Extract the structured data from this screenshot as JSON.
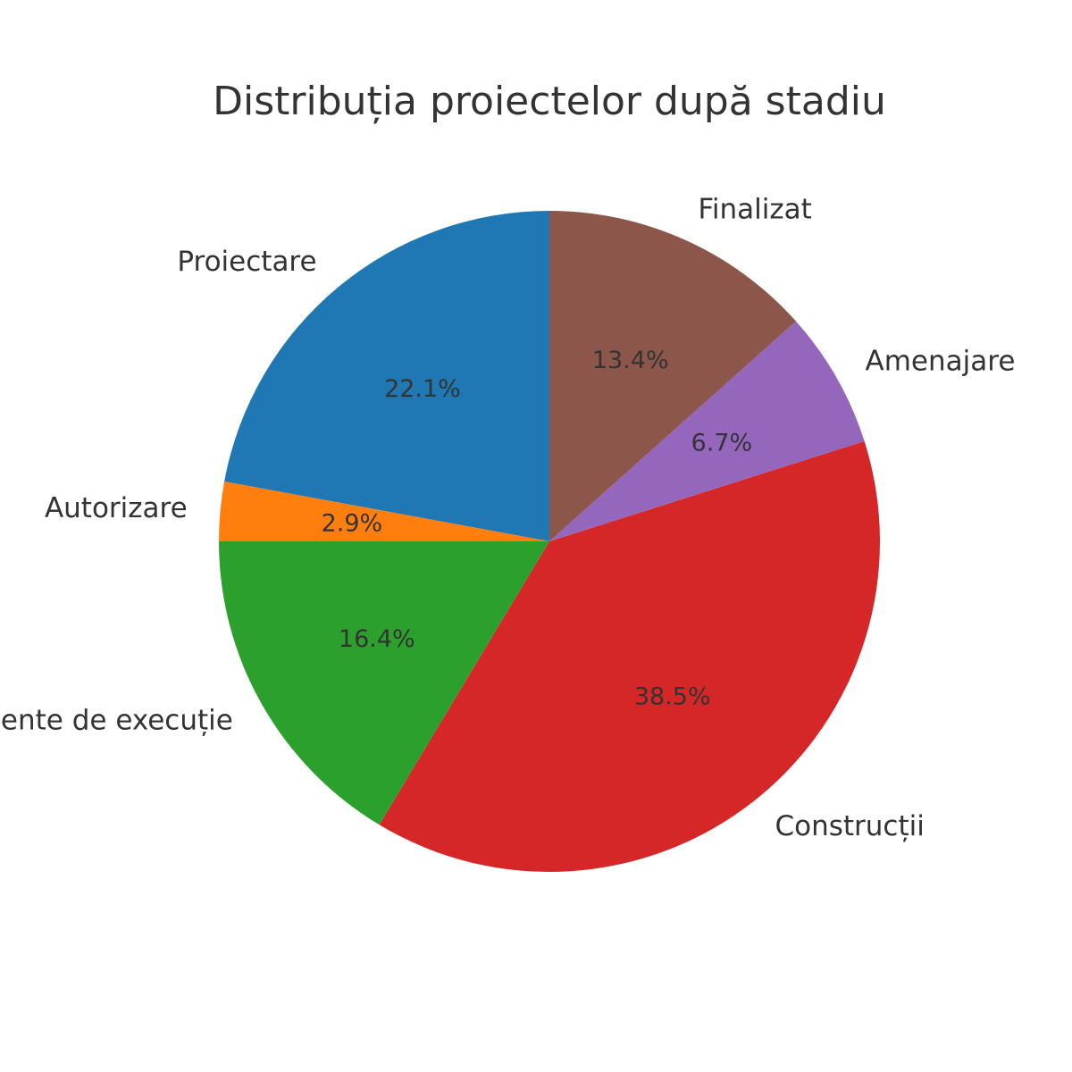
{
  "chart_data": {
    "type": "pie",
    "title": "Distribuția proiectelor după stadiu",
    "start_angle_deg": 90,
    "direction": "counterclockwise",
    "slices": [
      {
        "label": "Proiectare",
        "value": 22.1,
        "pct_label": "22.1%",
        "color": "#1f77b4"
      },
      {
        "label": "Autorizare",
        "value": 2.9,
        "pct_label": "2.9%",
        "color": "#ff7f0e"
      },
      {
        "label": "Documente de execuție",
        "value": 16.4,
        "pct_label": "16.4%",
        "color": "#2ca02c"
      },
      {
        "label": "Construcții",
        "value": 38.5,
        "pct_label": "38.5%",
        "color": "#d62728"
      },
      {
        "label": "Amenajare",
        "value": 6.7,
        "pct_label": "6.7%",
        "color": "#9467bd"
      },
      {
        "label": "Finalizat",
        "value": 13.4,
        "pct_label": "13.4%",
        "color": "#8c564b"
      }
    ]
  }
}
